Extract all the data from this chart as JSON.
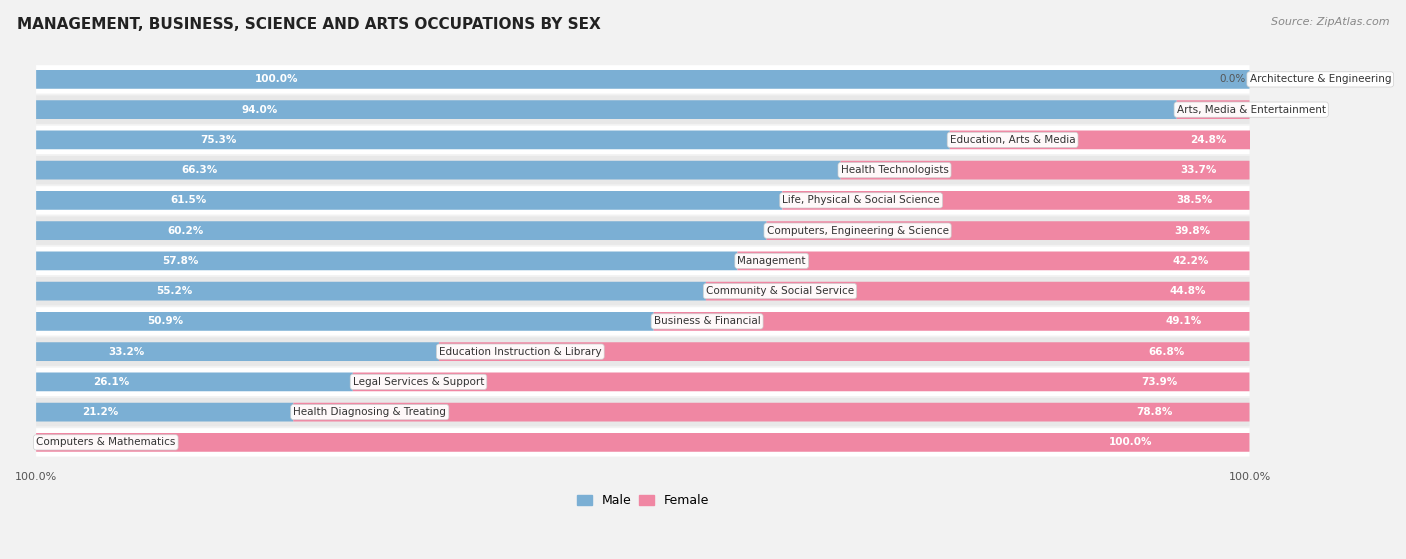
{
  "title": "MANAGEMENT, BUSINESS, SCIENCE AND ARTS OCCUPATIONS BY SEX",
  "source": "Source: ZipAtlas.com",
  "categories": [
    "Architecture & Engineering",
    "Arts, Media & Entertainment",
    "Education, Arts & Media",
    "Health Technologists",
    "Life, Physical & Social Science",
    "Computers, Engineering & Science",
    "Management",
    "Community & Social Service",
    "Business & Financial",
    "Education Instruction & Library",
    "Legal Services & Support",
    "Health Diagnosing & Treating",
    "Computers & Mathematics"
  ],
  "male": [
    100.0,
    94.0,
    75.3,
    66.3,
    61.5,
    60.2,
    57.8,
    55.2,
    50.9,
    33.2,
    26.1,
    21.2,
    0.0
  ],
  "female": [
    0.0,
    6.0,
    24.8,
    33.7,
    38.5,
    39.8,
    42.2,
    44.8,
    49.1,
    66.8,
    73.9,
    78.8,
    100.0
  ],
  "male_color": "#7bafd4",
  "female_color": "#f087a3",
  "bg_color": "#f2f2f2",
  "row_bg_even": "#ffffff",
  "row_bg_odd": "#e8e8e8",
  "title_fontsize": 11,
  "source_fontsize": 8,
  "bar_label_fontsize": 7.5,
  "cat_label_fontsize": 7.5,
  "legend_fontsize": 9,
  "male_label_threshold": 12,
  "female_label_threshold": 12
}
